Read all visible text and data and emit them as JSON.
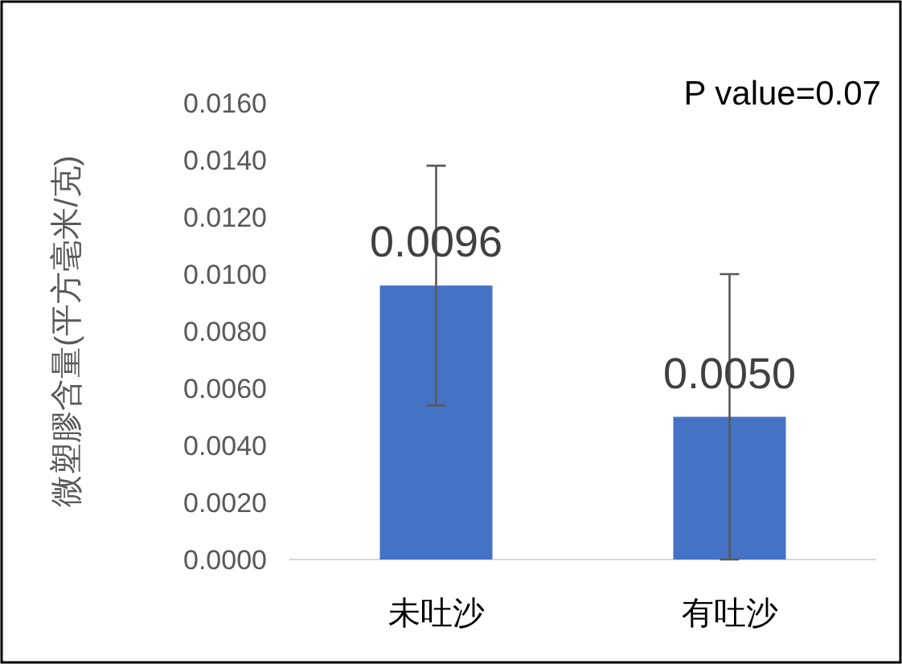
{
  "chart_data": {
    "type": "bar",
    "ylabel": "微塑膠含量(平方毫米/克)",
    "categories": [
      "未吐沙",
      "有吐沙"
    ],
    "values": [
      0.0096,
      0.005
    ],
    "color": "#4472c4",
    "errors": [
      0.0042,
      0.005
    ],
    "value_labels": [
      "0.0096",
      "0.0050"
    ],
    "ylim": [
      0,
      0.016
    ],
    "yticks": [
      {
        "value": 0,
        "label": "0.0000"
      },
      {
        "value": 0.002,
        "label": "0.0020"
      },
      {
        "value": 0.004,
        "label": "0.0040"
      },
      {
        "value": 0.006,
        "label": "0.0060"
      },
      {
        "value": 0.008,
        "label": "0.0080"
      },
      {
        "value": 0.01,
        "label": "0.0100"
      },
      {
        "value": 0.012,
        "label": "0.0120"
      },
      {
        "value": 0.014,
        "label": "0.0140"
      },
      {
        "value": 0.016,
        "label": "0.0160"
      }
    ],
    "annotations": [
      "P value=0.07"
    ],
    "grid": false
  }
}
